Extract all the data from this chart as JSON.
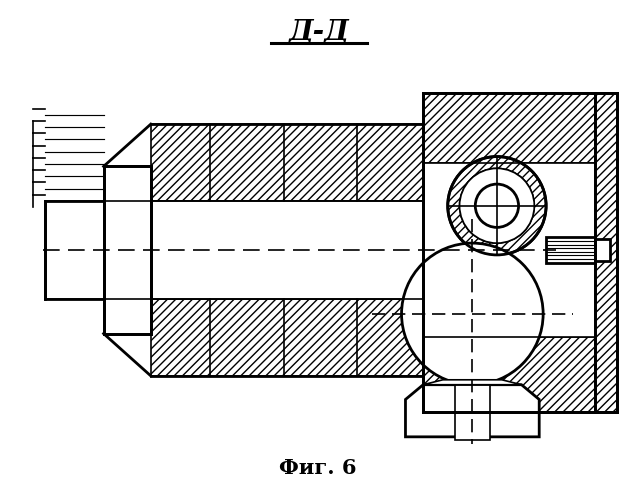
{
  "title_top": "Д-Д",
  "title_bottom": "Фиг. 6",
  "bg_color": "#ffffff",
  "line_color": "#000000",
  "figsize": [
    6.31,
    5.0
  ],
  "dpi": 100
}
